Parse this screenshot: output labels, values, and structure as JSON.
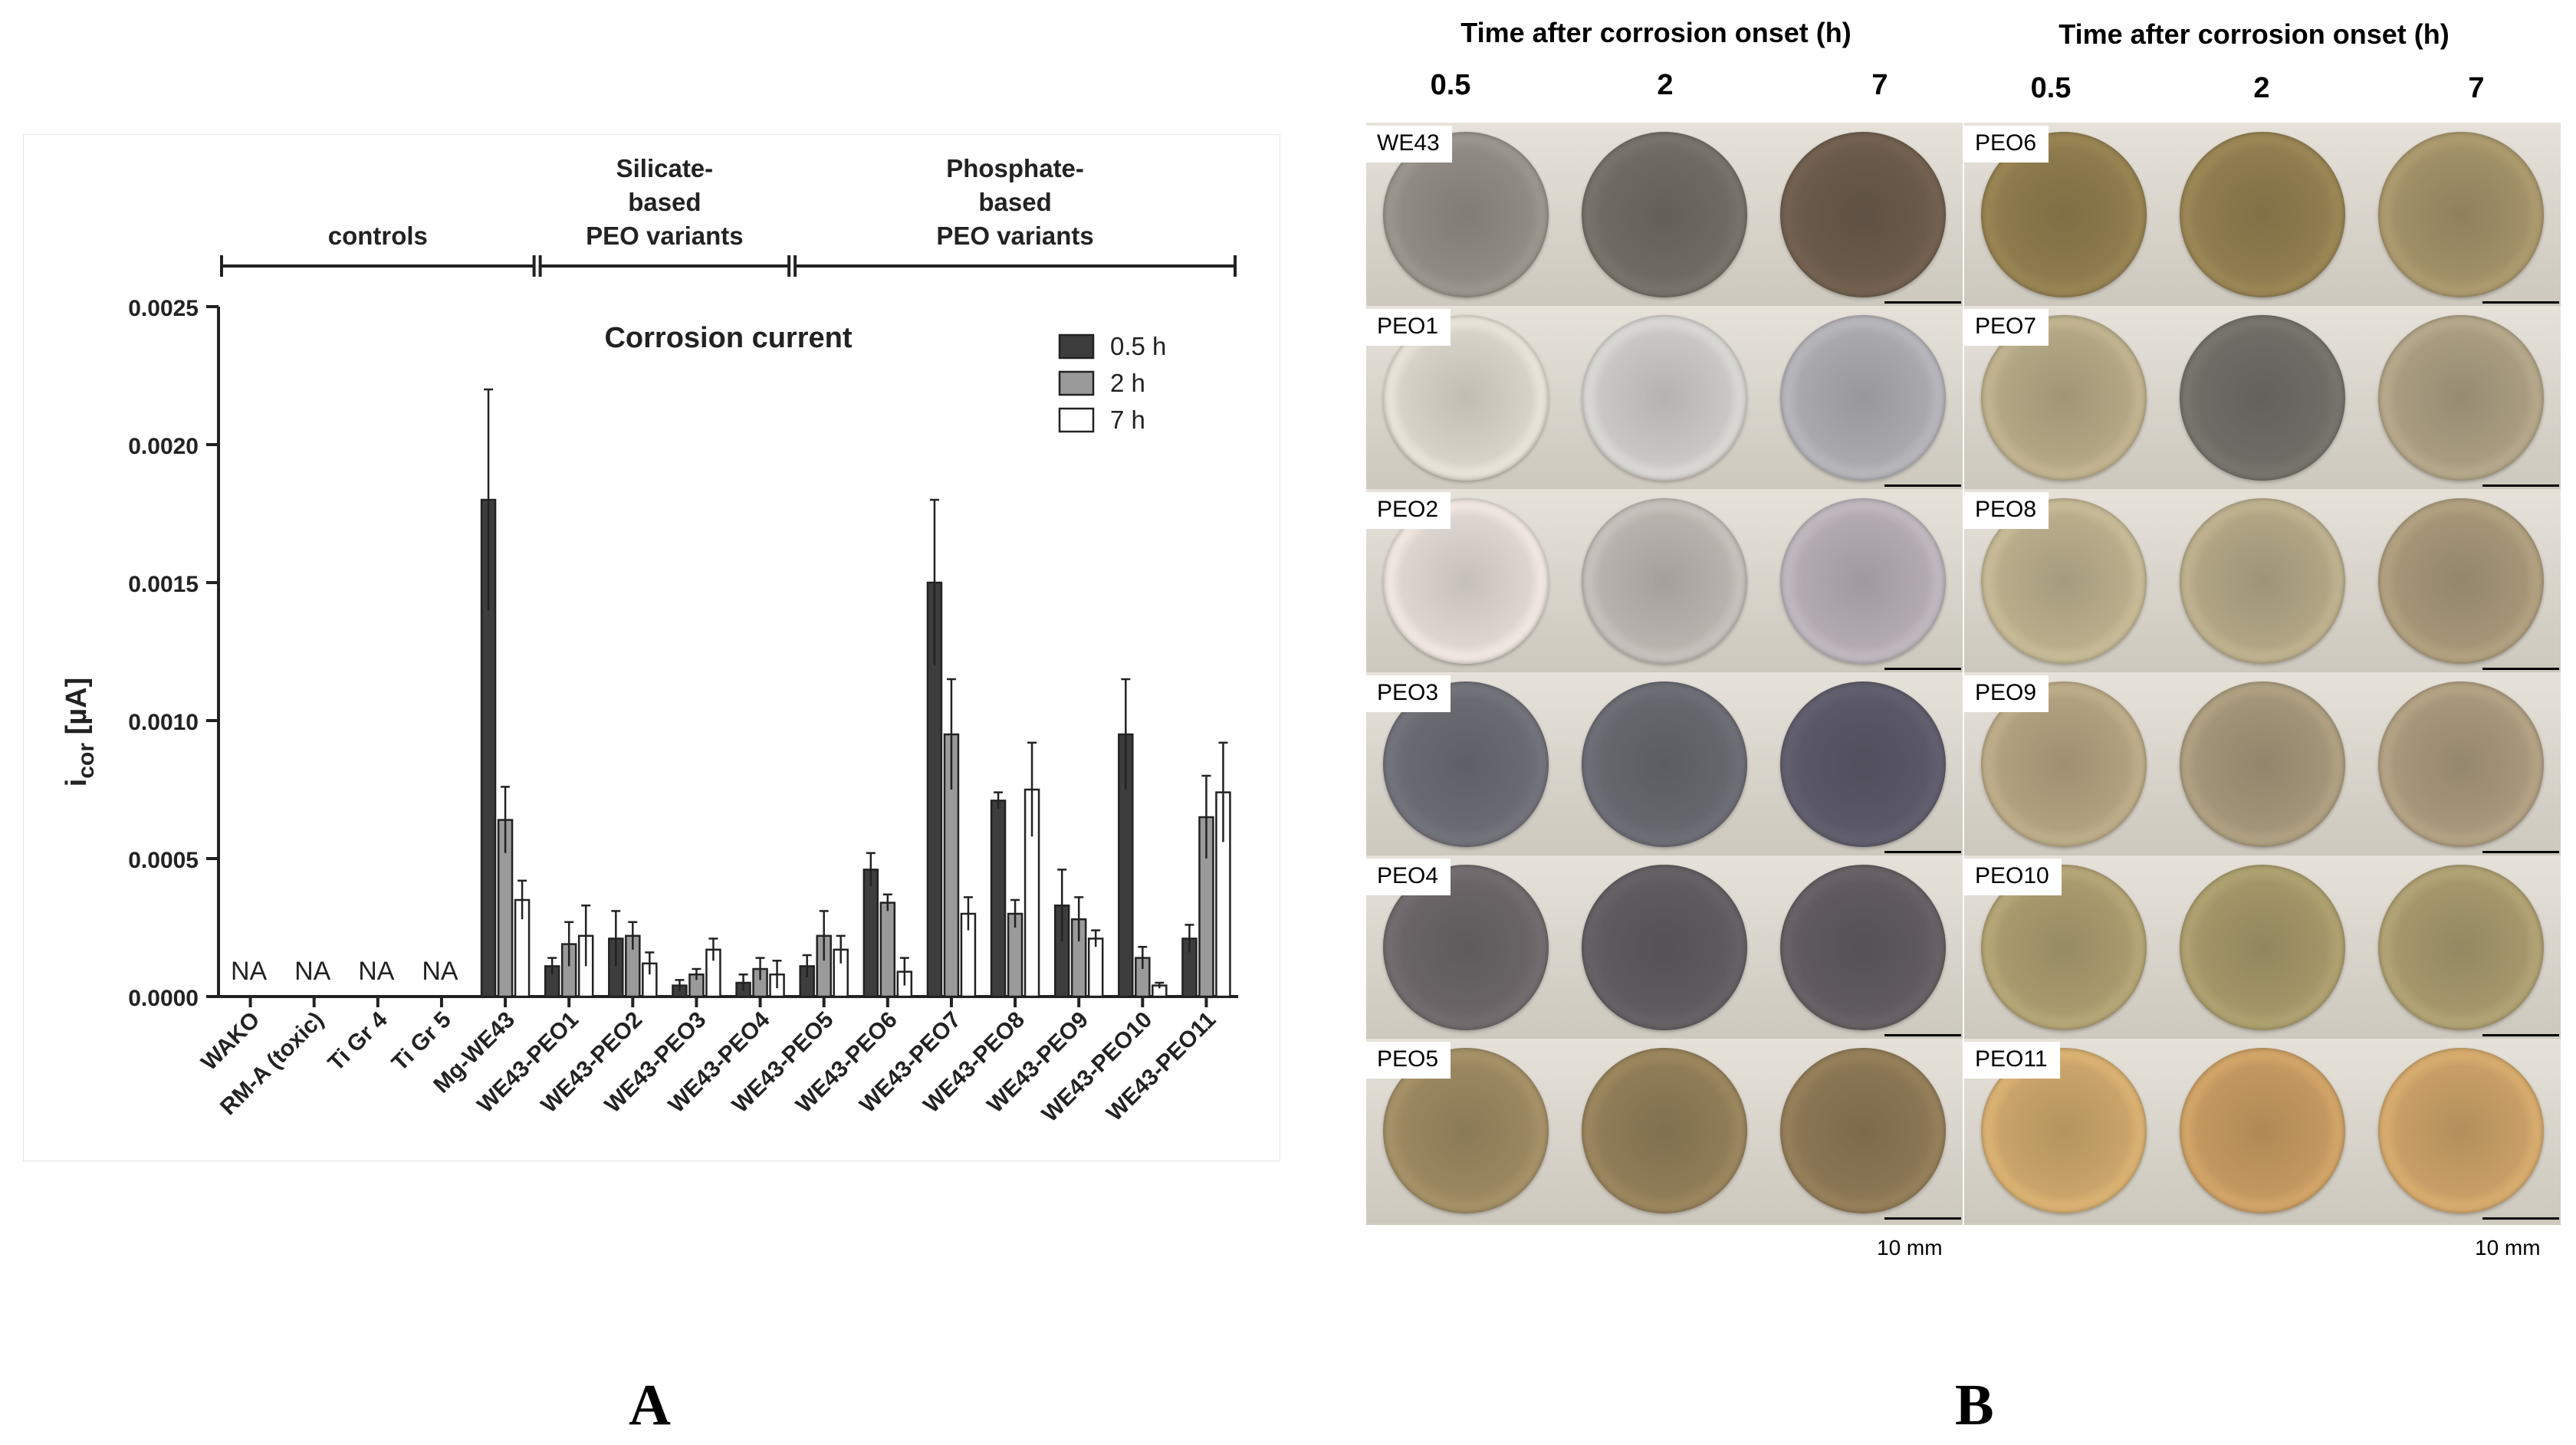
{
  "panel_labels": [
    "A",
    "B"
  ],
  "chart_data": {
    "type": "bar",
    "title": "Corrosion current",
    "ylabel": "i",
    "ylabel_sub": "cor",
    "ylabel_unit": " [µA]",
    "xlabel": "",
    "ylim": [
      0,
      0.0025
    ],
    "yticks": [
      "0.0000",
      "0.0005",
      "0.0010",
      "0.0015",
      "0.0020",
      "0.0025"
    ],
    "grid": false,
    "legend_position": "top-right",
    "categories": [
      "WAKO",
      "RM-A (toxic)",
      "Ti Gr 4",
      "Ti Gr 5",
      "Mg-WE43",
      "WE43-PEO1",
      "WE43-PEO2",
      "WE43-PEO3",
      "WE43-PEO4",
      "WE43-PEO5",
      "WE43-PEO6",
      "WE43-PEO7",
      "WE43-PEO8",
      "WE43-PEO9",
      "WE43-PEO10",
      "WE43-PEO11"
    ],
    "na_label": "NA",
    "na_categories": [
      "WAKO",
      "RM-A (toxic)",
      "Ti Gr 4",
      "Ti Gr 5"
    ],
    "series": [
      {
        "name": "0.5 h",
        "color": "#3d3d3d",
        "values": [
          null,
          null,
          null,
          null,
          0.0018,
          0.00011,
          0.00021,
          4e-05,
          5e-05,
          0.00011,
          0.00046,
          0.0015,
          0.00071,
          0.00033,
          0.00095,
          0.00021
        ],
        "errors": [
          null,
          null,
          null,
          null,
          0.0004,
          3e-05,
          0.0001,
          2e-05,
          3e-05,
          4e-05,
          6e-05,
          0.0003,
          3e-05,
          0.00013,
          0.0002,
          5e-05
        ]
      },
      {
        "name": "2 h",
        "color": "#9a9a9a",
        "values": [
          null,
          null,
          null,
          null,
          0.00064,
          0.00019,
          0.00022,
          8e-05,
          0.0001,
          0.00022,
          0.00034,
          0.00095,
          0.0003,
          0.00028,
          0.00014,
          0.00065
        ],
        "errors": [
          null,
          null,
          null,
          null,
          0.00012,
          8e-05,
          5e-05,
          2e-05,
          4e-05,
          9e-05,
          3e-05,
          0.0002,
          5e-05,
          8e-05,
          4e-05,
          0.00015
        ]
      },
      {
        "name": "7 h",
        "color": "#ffffff",
        "values": [
          null,
          null,
          null,
          null,
          0.00035,
          0.00022,
          0.00012,
          0.00017,
          8e-05,
          0.00017,
          9e-05,
          0.0003,
          0.00075,
          0.00021,
          4e-05,
          0.00074
        ],
        "errors": [
          null,
          null,
          null,
          null,
          7e-05,
          0.00011,
          4e-05,
          4e-05,
          5e-05,
          5e-05,
          5e-05,
          6e-05,
          0.00017,
          3e-05,
          1e-05,
          0.00018
        ]
      }
    ],
    "groups": [
      {
        "label": [
          "controls"
        ],
        "from": 0,
        "to": 4
      },
      {
        "label": [
          "Silicate-",
          "based",
          "PEO variants"
        ],
        "from": 5,
        "to": 8
      },
      {
        "label": [
          "Phosphate-",
          "based",
          "PEO variants"
        ],
        "from": 9,
        "to": 15
      }
    ]
  },
  "panel_b": {
    "header": "Time after corrosion onset (h)",
    "time_columns": [
      "0.5",
      "2",
      "7"
    ],
    "scale_label": "10 mm",
    "left_rows": [
      {
        "label": "WE43",
        "colors": [
          "#8f8a82",
          "#6f6a62",
          "#6a5a4a"
        ]
      },
      {
        "label": "PEO1",
        "colors": [
          "#d6d2c8",
          "#c9c7c3",
          "#a9a8ad"
        ]
      },
      {
        "label": "PEO2",
        "colors": [
          "#ddd5cf",
          "#b8b2ad",
          "#b2aab0"
        ]
      },
      {
        "label": "PEO3",
        "colors": [
          "#6a6a72",
          "#66666e",
          "#5a5866"
        ]
      },
      {
        "label": "PEO4",
        "colors": [
          "#6a6466",
          "#5e5a5e",
          "#605a5e"
        ]
      },
      {
        "label": "PEO5",
        "colors": [
          "#9a8760",
          "#8f7c57",
          "#8a7653"
        ]
      }
    ],
    "right_rows": [
      {
        "label": "PEO6",
        "colors": [
          "#8d7a4d",
          "#8f7c4f",
          "#a08f67"
        ]
      },
      {
        "label": "PEO7",
        "colors": [
          "#b3a684",
          "#6f6b65",
          "#a89b80"
        ]
      },
      {
        "label": "PEO8",
        "colors": [
          "#b8ac8b",
          "#b0a484",
          "#a49577"
        ]
      },
      {
        "label": "PEO9",
        "colors": [
          "#b0a07f",
          "#a29478",
          "#a6967a"
        ]
      },
      {
        "label": "PEO10",
        "colors": [
          "#a89a6e",
          "#a29568",
          "#a4976c"
        ]
      },
      {
        "label": "PEO11",
        "colors": [
          "#c9a46a",
          "#c29860",
          "#c79f66"
        ]
      }
    ]
  }
}
